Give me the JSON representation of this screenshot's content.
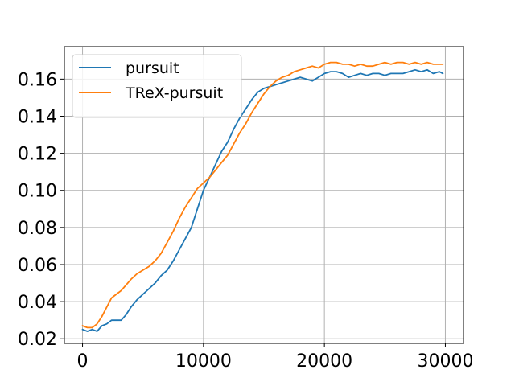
{
  "chart_data": {
    "type": "line",
    "title": "",
    "xlabel": "",
    "ylabel": "",
    "xlim": [
      -1500,
      31500
    ],
    "ylim": [
      0.0175,
      0.1775
    ],
    "xticks": [
      0,
      10000,
      20000,
      30000
    ],
    "xtick_labels": [
      "0",
      "10000",
      "20000",
      "30000"
    ],
    "yticks": [
      0.02,
      0.04,
      0.06,
      0.08,
      0.1,
      0.12,
      0.14,
      0.16
    ],
    "ytick_labels": [
      "0.02",
      "0.04",
      "0.06",
      "0.08",
      "0.10",
      "0.12",
      "0.14",
      "0.16"
    ],
    "grid": true,
    "legend_position": "upper-left",
    "series": [
      {
        "name": "pursuit",
        "color": "#1f77b4",
        "x": [
          0,
          400,
          800,
          1200,
          1600,
          2000,
          2400,
          2800,
          3200,
          3600,
          4000,
          4500,
          5000,
          5500,
          6000,
          6500,
          7000,
          7500,
          8000,
          8500,
          9000,
          9500,
          10000,
          10500,
          11000,
          11500,
          12000,
          12500,
          13000,
          13500,
          14000,
          14500,
          15000,
          15500,
          16000,
          16500,
          17000,
          17500,
          18000,
          18500,
          19000,
          19500,
          20000,
          20500,
          21000,
          21500,
          22000,
          22500,
          23000,
          23500,
          24000,
          24500,
          25000,
          25500,
          26000,
          26500,
          27000,
          27500,
          28000,
          28500,
          29000,
          29500,
          29800
        ],
        "values": [
          0.025,
          0.024,
          0.025,
          0.024,
          0.027,
          0.028,
          0.03,
          0.03,
          0.03,
          0.033,
          0.037,
          0.041,
          0.044,
          0.047,
          0.05,
          0.054,
          0.057,
          0.062,
          0.068,
          0.074,
          0.08,
          0.09,
          0.1,
          0.107,
          0.114,
          0.121,
          0.126,
          0.133,
          0.139,
          0.144,
          0.149,
          0.153,
          0.155,
          0.156,
          0.157,
          0.158,
          0.159,
          0.16,
          0.161,
          0.16,
          0.159,
          0.161,
          0.163,
          0.164,
          0.164,
          0.163,
          0.161,
          0.162,
          0.163,
          0.162,
          0.163,
          0.163,
          0.162,
          0.163,
          0.163,
          0.163,
          0.164,
          0.165,
          0.164,
          0.165,
          0.163,
          0.164,
          0.163
        ]
      },
      {
        "name": "TReX-pursuit",
        "color": "#ff7f0e",
        "x": [
          0,
          400,
          800,
          1200,
          1600,
          2000,
          2400,
          2800,
          3200,
          3600,
          4000,
          4500,
          5000,
          5500,
          6000,
          6500,
          7000,
          7500,
          8000,
          8500,
          9000,
          9500,
          10000,
          10500,
          11000,
          11500,
          12000,
          12500,
          13000,
          13500,
          14000,
          14500,
          15000,
          15500,
          16000,
          16500,
          17000,
          17500,
          18000,
          18500,
          19000,
          19500,
          20000,
          20500,
          21000,
          21500,
          22000,
          22500,
          23000,
          23500,
          24000,
          24500,
          25000,
          25500,
          26000,
          26500,
          27000,
          27500,
          28000,
          28500,
          29000,
          29500,
          29800
        ],
        "values": [
          0.027,
          0.026,
          0.026,
          0.028,
          0.032,
          0.037,
          0.042,
          0.044,
          0.046,
          0.049,
          0.052,
          0.055,
          0.057,
          0.059,
          0.062,
          0.066,
          0.072,
          0.078,
          0.085,
          0.091,
          0.096,
          0.101,
          0.104,
          0.107,
          0.111,
          0.115,
          0.119,
          0.125,
          0.131,
          0.136,
          0.142,
          0.147,
          0.152,
          0.156,
          0.159,
          0.161,
          0.162,
          0.164,
          0.165,
          0.166,
          0.167,
          0.166,
          0.168,
          0.169,
          0.169,
          0.168,
          0.168,
          0.167,
          0.168,
          0.167,
          0.167,
          0.168,
          0.169,
          0.168,
          0.169,
          0.169,
          0.168,
          0.169,
          0.168,
          0.169,
          0.168,
          0.168,
          0.168
        ]
      }
    ]
  }
}
